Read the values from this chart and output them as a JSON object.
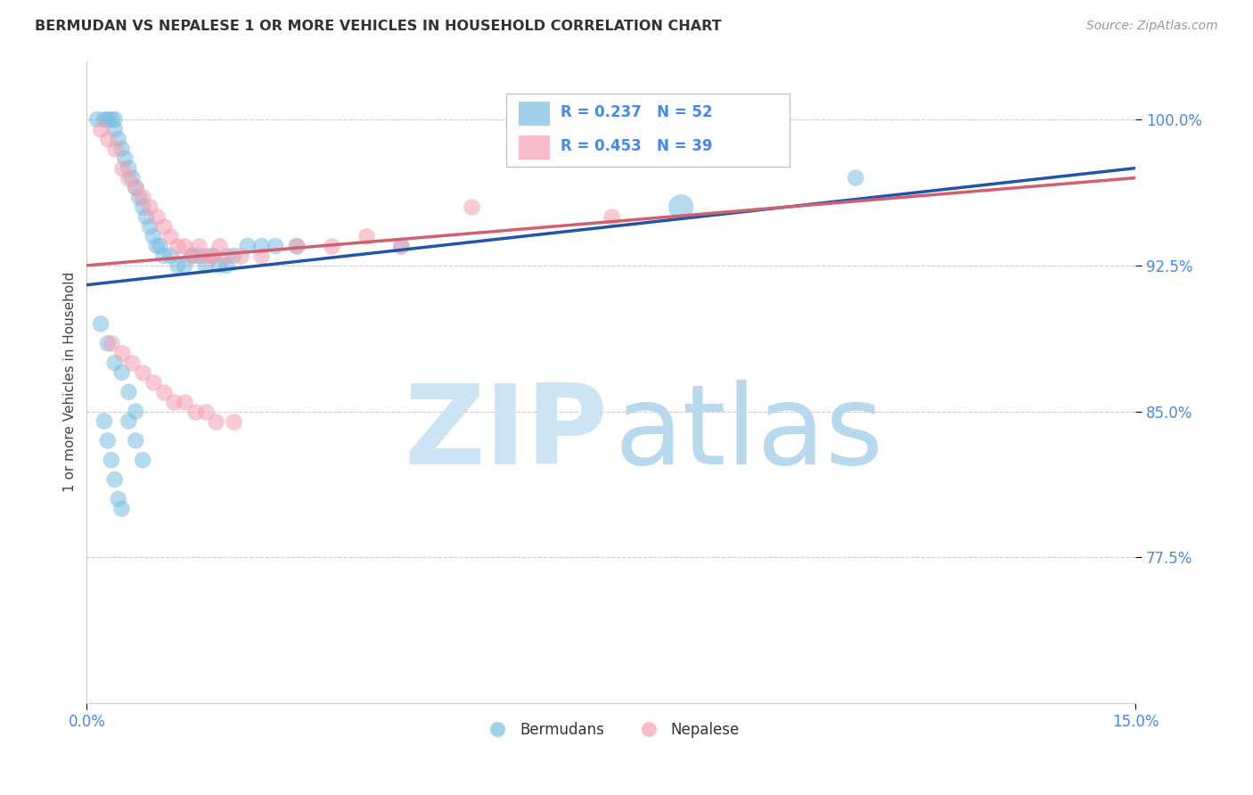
{
  "title": "BERMUDAN VS NEPALESE 1 OR MORE VEHICLES IN HOUSEHOLD CORRELATION CHART",
  "source": "Source: ZipAtlas.com",
  "ylabel": "1 or more Vehicles in Household",
  "y_ticks": [
    77.5,
    85.0,
    92.5,
    100.0
  ],
  "x_range": [
    0.0,
    15.0
  ],
  "y_lim": [
    70.0,
    103.0
  ],
  "legend_label_bermudans": "Bermudans",
  "legend_label_nepalese": "Nepalese",
  "blue_color": "#7bbde0",
  "pink_color": "#f4a0b0",
  "blue_line_color": "#2255aa",
  "pink_line_color": "#d06070",
  "watermark_zip_color": "#cce4f4",
  "watermark_atlas_color": "#b8d8ee",
  "R_blue": 0.237,
  "N_blue": 52,
  "R_pink": 0.453,
  "N_pink": 39,
  "grid_color": "#cccccc",
  "tick_color": "#4488ee",
  "title_color": "#333333",
  "source_color": "#999999",
  "blue_x": [
    0.15,
    0.25,
    0.3,
    0.35,
    0.4,
    0.4,
    0.45,
    0.5,
    0.55,
    0.6,
    0.65,
    0.7,
    0.75,
    0.8,
    0.85,
    0.9,
    0.95,
    1.0,
    1.05,
    1.1,
    1.2,
    1.3,
    1.4,
    1.5,
    1.6,
    1.7,
    1.8,
    1.9,
    2.0,
    2.1,
    2.3,
    2.5,
    2.7,
    3.0,
    0.2,
    0.3,
    0.4,
    0.5,
    0.6,
    0.7,
    0.25,
    0.3,
    0.35,
    0.4,
    0.45,
    0.5,
    0.6,
    0.7,
    0.8,
    8.5,
    11.0,
    4.5
  ],
  "blue_y": [
    100.0,
    100.0,
    100.0,
    100.0,
    100.0,
    99.5,
    99.0,
    98.5,
    98.0,
    97.5,
    97.0,
    96.5,
    96.0,
    95.5,
    95.0,
    94.5,
    94.0,
    93.5,
    93.5,
    93.0,
    93.0,
    92.5,
    92.5,
    93.0,
    93.0,
    92.5,
    93.0,
    92.5,
    92.5,
    93.0,
    93.5,
    93.5,
    93.5,
    93.5,
    89.5,
    88.5,
    87.5,
    87.0,
    86.0,
    85.0,
    84.5,
    83.5,
    82.5,
    81.5,
    80.5,
    80.0,
    84.5,
    83.5,
    82.5,
    95.5,
    97.0,
    93.5
  ],
  "pink_x": [
    0.2,
    0.3,
    0.4,
    0.5,
    0.6,
    0.7,
    0.8,
    0.9,
    1.0,
    1.1,
    1.2,
    1.3,
    1.4,
    1.5,
    1.6,
    1.7,
    1.8,
    1.9,
    2.0,
    2.2,
    2.5,
    3.0,
    3.5,
    4.0,
    4.5,
    0.35,
    0.5,
    0.65,
    0.8,
    0.95,
    1.1,
    1.25,
    1.4,
    1.55,
    1.7,
    5.5,
    7.5,
    1.85,
    2.1
  ],
  "pink_y": [
    99.5,
    99.0,
    98.5,
    97.5,
    97.0,
    96.5,
    96.0,
    95.5,
    95.0,
    94.5,
    94.0,
    93.5,
    93.5,
    93.0,
    93.5,
    93.0,
    93.0,
    93.5,
    93.0,
    93.0,
    93.0,
    93.5,
    93.5,
    94.0,
    93.5,
    88.5,
    88.0,
    87.5,
    87.0,
    86.5,
    86.0,
    85.5,
    85.5,
    85.0,
    85.0,
    95.5,
    95.0,
    84.5,
    84.5
  ],
  "blue_line_x0": 0.0,
  "blue_line_y0": 91.5,
  "blue_line_x1": 15.0,
  "blue_line_y1": 97.5,
  "pink_line_x0": 0.0,
  "pink_line_y0": 92.5,
  "pink_line_x1": 15.0,
  "pink_line_y1": 97.0
}
